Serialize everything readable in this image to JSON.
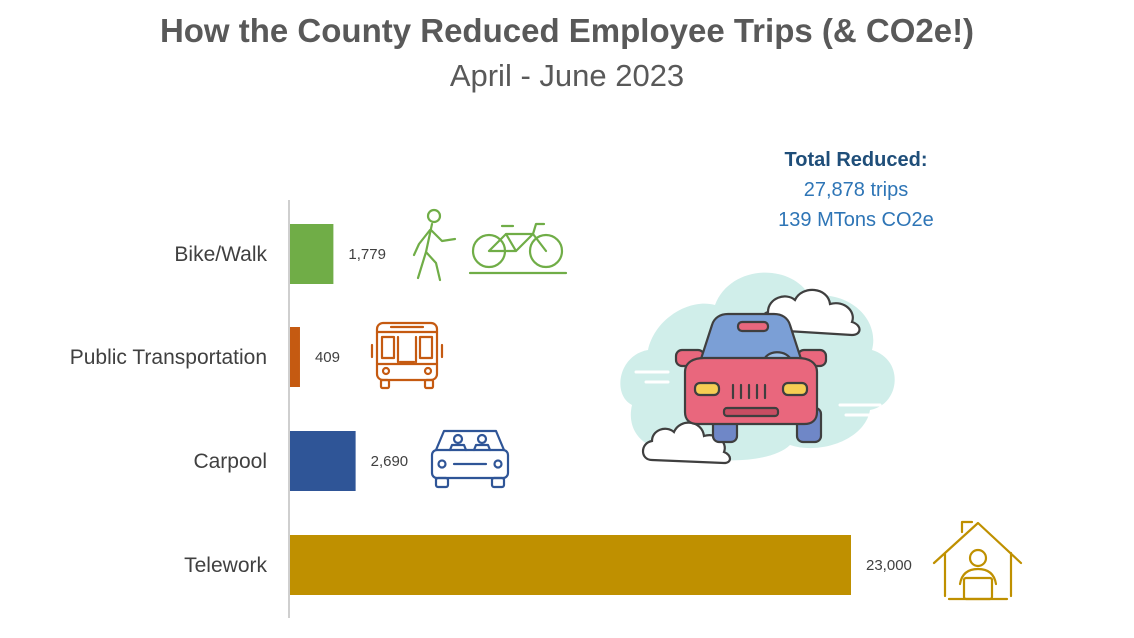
{
  "title": "How the County Reduced Employee Trips (& CO2e!)",
  "subtitle": "April - June 2023",
  "summary": {
    "heading": "Total Reduced:",
    "trips": "27,878 trips",
    "co2": "139 MTons CO2e"
  },
  "icons": {
    "bike_walk": [
      "walking-person-icon",
      "bicycle-icon"
    ],
    "public_transportation": "bus-icon",
    "carpool": "car-with-passengers-icon",
    "telework": "person-working-at-home-icon",
    "decoration": "car-in-clouds-illustration"
  },
  "colors": {
    "bike_walk": "#70ad47",
    "public_transportation": "#c55a11",
    "carpool": "#2f5597",
    "telework": "#bf9000"
  },
  "chart_data": {
    "type": "bar",
    "orientation": "horizontal",
    "categories": [
      "Bike/Walk",
      "Public Transportation",
      "Carpool",
      "Telework"
    ],
    "values": [
      1779,
      409,
      2690,
      23000
    ],
    "value_labels": [
      "1,779",
      "409",
      "2,690",
      "23,000"
    ],
    "colors": [
      "#70ad47",
      "#c55a11",
      "#2f5597",
      "#bf9000"
    ],
    "title": "How the County Reduced Employee Trips (& CO2e!)",
    "subtitle": "April - June 2023",
    "xlabel": "",
    "ylabel": "",
    "xlim": [
      0,
      23000
    ],
    "grid": false,
    "legend": "none"
  }
}
